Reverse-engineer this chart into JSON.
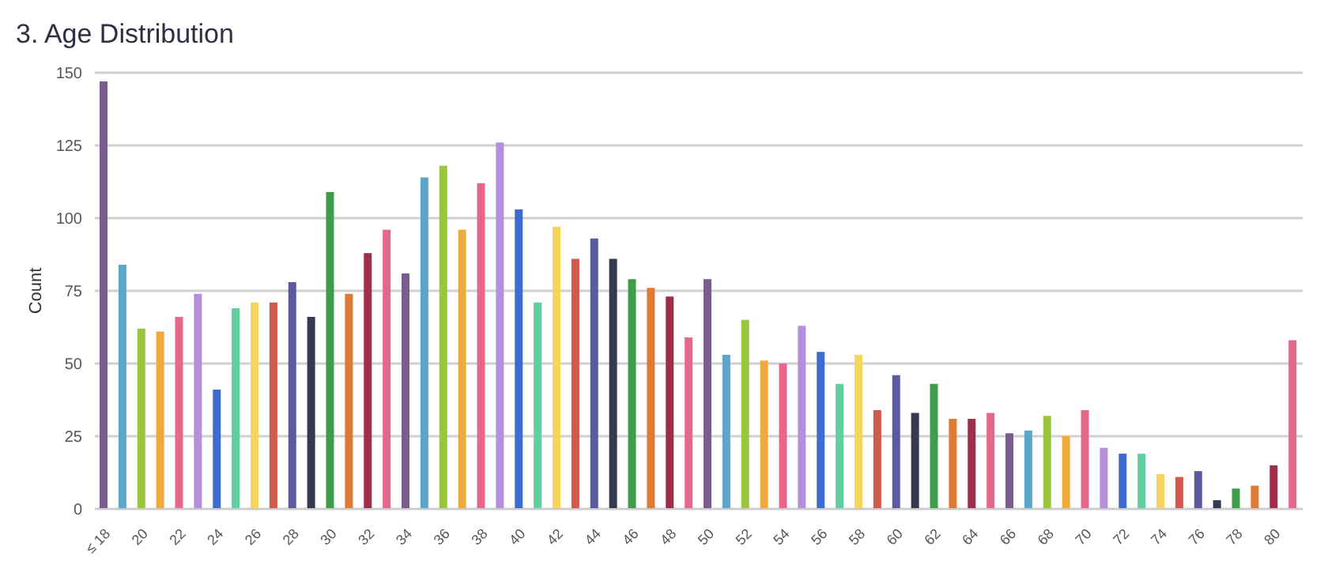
{
  "chart_data": {
    "type": "bar",
    "title": "3. Age Distribution",
    "ylabel": "Count",
    "categories": [
      "≤ 18",
      null,
      "20",
      null,
      "22",
      null,
      "24",
      null,
      "26",
      null,
      "28",
      null,
      "30",
      null,
      "32",
      null,
      "34",
      null,
      "36",
      null,
      "38",
      null,
      "40",
      null,
      "42",
      null,
      "44",
      null,
      "46",
      null,
      "48",
      null,
      "50",
      null,
      "52",
      null,
      "54",
      null,
      "56",
      null,
      "58",
      null,
      "60",
      null,
      "62",
      null,
      "64",
      null,
      "66",
      null,
      "68",
      null,
      "70",
      null,
      "72",
      null,
      "74",
      null,
      "76",
      null,
      "78",
      null,
      "80",
      null
    ],
    "values": [
      147,
      84,
      62,
      61,
      66,
      74,
      41,
      69,
      71,
      71,
      78,
      66,
      109,
      74,
      88,
      96,
      81,
      114,
      118,
      96,
      112,
      126,
      103,
      71,
      97,
      86,
      93,
      86,
      79,
      76,
      73,
      59,
      79,
      53,
      65,
      51,
      50,
      63,
      54,
      43,
      53,
      34,
      46,
      33,
      43,
      31,
      31,
      33,
      26,
      27,
      32,
      25,
      34,
      21,
      19,
      19,
      12,
      11,
      13,
      3,
      7,
      8,
      15,
      58
    ],
    "colors": [
      "#7b5c91",
      "#5ba7c9",
      "#9bc53d",
      "#f0a93b",
      "#e5688a",
      "#b48fde",
      "#3f6bd0",
      "#5fcfa0",
      "#f7d45c",
      "#d05a4e",
      "#5b5a9e",
      "#343a4f",
      "#3c9e48",
      "#df7a34",
      "#9e2f4a",
      "#e5688a",
      "#7b5c91",
      "#5ba7c9",
      "#9bc53d",
      "#f0a93b",
      "#e5688a",
      "#b48fde",
      "#3f6bd0",
      "#5fcfa0",
      "#f7d45c",
      "#d05a4e",
      "#5b5a9e",
      "#343a4f",
      "#3c9e48",
      "#df7a34",
      "#9e2f4a",
      "#e5688a",
      "#7b5c91",
      "#5ba7c9",
      "#9bc53d",
      "#f0a93b",
      "#e5688a",
      "#b48fde",
      "#3f6bd0",
      "#5fcfa0",
      "#f7d45c",
      "#d05a4e",
      "#5b5a9e",
      "#343a4f",
      "#3c9e48",
      "#df7a34",
      "#9e2f4a",
      "#e5688a",
      "#7b5c91",
      "#5ba7c9",
      "#9bc53d",
      "#f0a93b",
      "#e5688a",
      "#b48fde",
      "#3f6bd0",
      "#5fcfa0",
      "#f7d45c",
      "#d05a4e",
      "#5b5a9e",
      "#343a4f",
      "#3c9e48",
      "#df7a34",
      "#9e2f4a",
      "#e5688a"
    ],
    "ylim": [
      0,
      150
    ],
    "yticks": [
      0,
      25,
      50,
      75,
      100,
      125,
      150
    ],
    "grid": "y"
  }
}
